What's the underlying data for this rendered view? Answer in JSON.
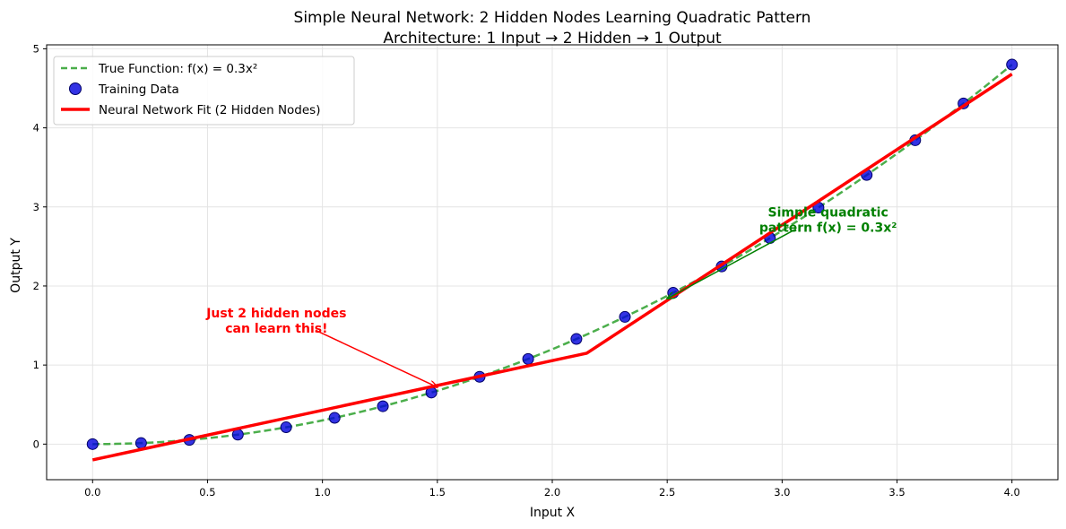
{
  "chart_data": {
    "type": "line",
    "title_line1": "Simple Neural Network: 2 Hidden Nodes Learning Quadratic Pattern",
    "title_line2": "Architecture: 1 Input → 2 Hidden → 1 Output",
    "xlabel": "Input X",
    "ylabel": "Output Y",
    "xlim": [
      -0.2,
      4.2
    ],
    "ylim": [
      -0.45,
      5.05
    ],
    "xticks": [
      0.0,
      0.5,
      1.0,
      1.5,
      2.0,
      2.5,
      3.0,
      3.5,
      4.0
    ],
    "xtick_labels": [
      "0.0",
      "0.5",
      "1.0",
      "1.5",
      "2.0",
      "2.5",
      "3.0",
      "3.5",
      "4.0"
    ],
    "yticks": [
      0,
      1,
      2,
      3,
      4,
      5
    ],
    "ytick_labels": [
      "0",
      "1",
      "2",
      "3",
      "4",
      "5"
    ],
    "grid": true,
    "legend_position": "top-left",
    "series": [
      {
        "name": "True Function: f(x) = 0.3x²",
        "kind": "dashed-line",
        "color": "#2ca02c",
        "function": "0.3*x^2",
        "x_range": [
          0,
          4
        ]
      },
      {
        "name": "Training Data",
        "kind": "scatter",
        "color": "#0000dd",
        "x": [
          0.0,
          0.211,
          0.421,
          0.632,
          0.842,
          1.053,
          1.263,
          1.474,
          1.684,
          1.895,
          2.105,
          2.316,
          2.526,
          2.737,
          2.947,
          3.158,
          3.368,
          3.579,
          3.789,
          4.0
        ],
        "y": [
          0.0,
          0.013,
          0.053,
          0.12,
          0.213,
          0.332,
          0.479,
          0.652,
          0.851,
          1.077,
          1.33,
          1.609,
          1.914,
          2.247,
          2.606,
          2.992,
          3.404,
          3.843,
          4.308,
          4.8
        ]
      },
      {
        "name": "Neural Network Fit (2 Hidden Nodes)",
        "kind": "line",
        "color": "#ff0000",
        "x": [
          0.0,
          2.15,
          4.0
        ],
        "y": [
          -0.2,
          1.15,
          4.68
        ]
      }
    ],
    "annotations": [
      {
        "text_lines": [
          "Just 2 hidden nodes",
          "can learn this!"
        ],
        "text_xy": [
          0.8,
          1.6
        ],
        "arrow_start": [
          0.97,
          1.44
        ],
        "arrow_to": [
          1.5,
          0.72
        ],
        "color": "#ff0000"
      },
      {
        "text_lines": [
          "Simple quadratic",
          "pattern f(x) = 0.3x²"
        ],
        "text_xy": [
          3.2,
          2.88
        ],
        "arrow_start": [
          3.06,
          2.72
        ],
        "arrow_to": [
          2.5,
          1.84
        ],
        "color": "#008000"
      }
    ]
  }
}
